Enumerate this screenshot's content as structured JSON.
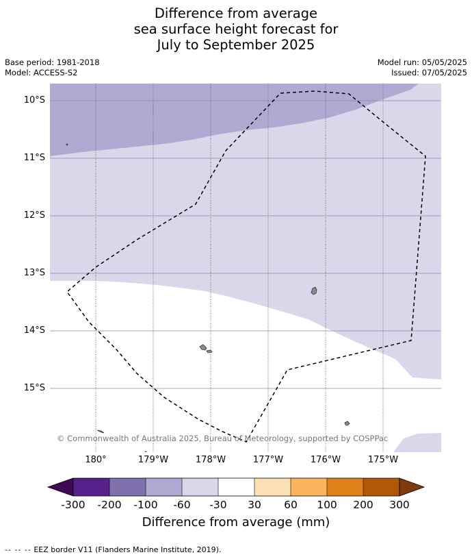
{
  "title": {
    "line1": "Difference from average",
    "line2": "sea surface height forecast for",
    "line3": "July to September 2025"
  },
  "meta": {
    "base_period": "Base period: 1981-2018",
    "model": "Model: ACCESS-S2",
    "model_run": "Model run: 05/05/2025",
    "issued": "Issued: 07/05/2025"
  },
  "map": {
    "latitude_labels": [
      "10°S",
      "11°S",
      "12°S",
      "13°S",
      "14°S",
      "15°S"
    ],
    "longitude_labels": [
      "180°",
      "179°W",
      "178°W",
      "177°W",
      "176°W",
      "175°W"
    ],
    "copyright": "© Commonwealth of Australia 2025, Bureau of Meteorology, supported by COSPPac",
    "colors": {
      "band_minus100_minus60": "#b0aad2",
      "band_minus60_minus30": "#d8d8ea",
      "band_minus30_30": "#ffffff",
      "land": "#8a8a8a",
      "gridline": "#8a8aa8",
      "eez_border": "#000000"
    }
  },
  "colorbar": {
    "tick_labels": [
      "-300",
      "-200",
      "-100",
      "-60",
      "-30",
      "30",
      "60",
      "100",
      "200",
      "300"
    ],
    "title": "Difference from average (mm)",
    "colors": [
      "#3f0a55",
      "#56218a",
      "#8070ae",
      "#b0aad2",
      "#d8d8ea",
      "#ffffff",
      "#fde0b5",
      "#fbb45e",
      "#e0821a",
      "#b15806",
      "#7f3b08"
    ]
  },
  "footer": {
    "dash": "-- -- --",
    "text": "EEZ border V11 (Flanders Marine Institute, 2019)."
  }
}
